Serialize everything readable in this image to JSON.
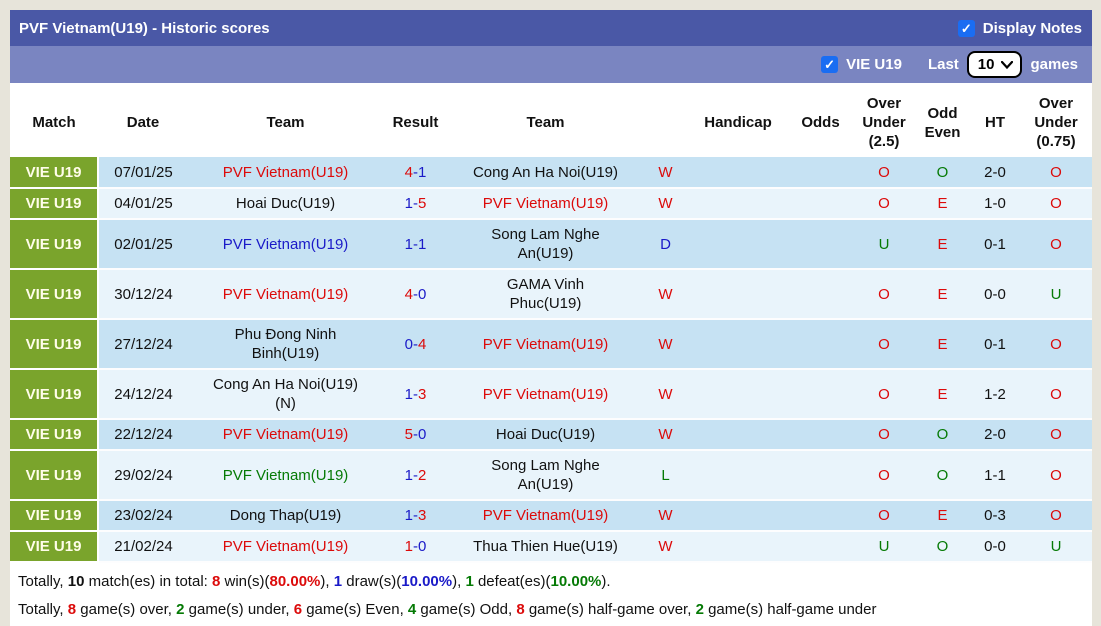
{
  "palette": {
    "red": "#dc0a0a",
    "blue": "#1a1ac8",
    "green": "#057a05",
    "black": "#111111",
    "accent_green": "#7aa42c",
    "bar_dark": "#4a58a6",
    "bar_light": "#7a85c1",
    "row_odd": "#c6e2f3",
    "row_even": "#e9f4fb",
    "checkbox_blue": "#1a6df2"
  },
  "title_bar": {
    "title": "PVF Vietnam(U19) - Historic scores",
    "display_notes_label": "Display Notes",
    "display_notes_checked": true,
    "check_glyph": "✓"
  },
  "filter_bar": {
    "team_label": "VIE U19",
    "team_checked": true,
    "last_label": "Last",
    "games_selected": "10",
    "games_label": "games",
    "check_glyph": "✓"
  },
  "table": {
    "headers": {
      "match": "Match",
      "date": "Date",
      "home": "Team",
      "result": "Result",
      "away": "Team",
      "wdl": "",
      "handicap": "Handicap",
      "odds": "Odds",
      "ou25": "Over\nUnder\n(2.5)",
      "oddeven": "Odd\nEven",
      "ht": "HT",
      "ou075": "Over\nUnder\n(0.75)"
    },
    "rows": [
      {
        "match": "VIE U19",
        "date": "07/01/25",
        "lines": 1,
        "home": {
          "text": "PVF Vietnam(U19)",
          "color": "red"
        },
        "score": {
          "home": "4",
          "away": "1",
          "home_color": "red",
          "away_color": "blue",
          "dash_color": "blue"
        },
        "away": {
          "text": "Cong An Ha Noi(U19)",
          "color": "black"
        },
        "wdl": {
          "text": "W",
          "color": "red"
        },
        "handicap": "",
        "odds": "",
        "ou25": {
          "text": "O",
          "color": "red"
        },
        "oddeven": {
          "text": "O",
          "color": "green"
        },
        "ht": "2-0",
        "ou075": {
          "text": "O",
          "color": "red"
        }
      },
      {
        "match": "VIE U19",
        "date": "04/01/25",
        "lines": 1,
        "home": {
          "text": "Hoai Duc(U19)",
          "color": "black"
        },
        "score": {
          "home": "1",
          "away": "5",
          "home_color": "blue",
          "away_color": "red",
          "dash_color": "blue"
        },
        "away": {
          "text": "PVF Vietnam(U19)",
          "color": "red"
        },
        "wdl": {
          "text": "W",
          "color": "red"
        },
        "handicap": "",
        "odds": "",
        "ou25": {
          "text": "O",
          "color": "red"
        },
        "oddeven": {
          "text": "E",
          "color": "red"
        },
        "ht": "1-0",
        "ou075": {
          "text": "O",
          "color": "red"
        }
      },
      {
        "match": "VIE U19",
        "date": "02/01/25",
        "lines": 2,
        "home": {
          "text": "PVF Vietnam(U19)",
          "color": "blue"
        },
        "score": {
          "home": "1",
          "away": "1",
          "home_color": "blue",
          "away_color": "blue",
          "dash_color": "blue"
        },
        "away": {
          "text": "Song Lam Nghe An(U19)",
          "color": "black"
        },
        "wdl": {
          "text": "D",
          "color": "blue"
        },
        "handicap": "",
        "odds": "",
        "ou25": {
          "text": "U",
          "color": "green"
        },
        "oddeven": {
          "text": "E",
          "color": "red"
        },
        "ht": "0-1",
        "ou075": {
          "text": "O",
          "color": "red"
        }
      },
      {
        "match": "VIE U19",
        "date": "30/12/24",
        "lines": 1,
        "home": {
          "text": "PVF Vietnam(U19)",
          "color": "red"
        },
        "score": {
          "home": "4",
          "away": "0",
          "home_color": "red",
          "away_color": "blue",
          "dash_color": "blue"
        },
        "away": {
          "text": "GAMA Vinh Phuc(U19)",
          "color": "black"
        },
        "wdl": {
          "text": "W",
          "color": "red"
        },
        "handicap": "",
        "odds": "",
        "ou25": {
          "text": "O",
          "color": "red"
        },
        "oddeven": {
          "text": "E",
          "color": "red"
        },
        "ht": "0-0",
        "ou075": {
          "text": "U",
          "color": "green"
        }
      },
      {
        "match": "VIE U19",
        "date": "27/12/24",
        "lines": 2,
        "home": {
          "text": "Phu Đong Ninh Binh(U19)",
          "color": "black"
        },
        "score": {
          "home": "0",
          "away": "4",
          "home_color": "blue",
          "away_color": "red",
          "dash_color": "blue"
        },
        "away": {
          "text": "PVF Vietnam(U19)",
          "color": "red"
        },
        "wdl": {
          "text": "W",
          "color": "red"
        },
        "handicap": "",
        "odds": "",
        "ou25": {
          "text": "O",
          "color": "red"
        },
        "oddeven": {
          "text": "E",
          "color": "red"
        },
        "ht": "0-1",
        "ou075": {
          "text": "O",
          "color": "red"
        }
      },
      {
        "match": "VIE U19",
        "date": "24/12/24",
        "lines": 2,
        "home": {
          "text": "Cong An Ha Noi(U19) (N)",
          "color": "black"
        },
        "score": {
          "home": "1",
          "away": "3",
          "home_color": "blue",
          "away_color": "red",
          "dash_color": "blue"
        },
        "away": {
          "text": "PVF Vietnam(U19)",
          "color": "red"
        },
        "wdl": {
          "text": "W",
          "color": "red"
        },
        "handicap": "",
        "odds": "",
        "ou25": {
          "text": "O",
          "color": "red"
        },
        "oddeven": {
          "text": "E",
          "color": "red"
        },
        "ht": "1-2",
        "ou075": {
          "text": "O",
          "color": "red"
        }
      },
      {
        "match": "VIE U19",
        "date": "22/12/24",
        "lines": 1,
        "home": {
          "text": "PVF Vietnam(U19)",
          "color": "red"
        },
        "score": {
          "home": "5",
          "away": "0",
          "home_color": "red",
          "away_color": "blue",
          "dash_color": "blue"
        },
        "away": {
          "text": "Hoai Duc(U19)",
          "color": "black"
        },
        "wdl": {
          "text": "W",
          "color": "red"
        },
        "handicap": "",
        "odds": "",
        "ou25": {
          "text": "O",
          "color": "red"
        },
        "oddeven": {
          "text": "O",
          "color": "green"
        },
        "ht": "2-0",
        "ou075": {
          "text": "O",
          "color": "red"
        }
      },
      {
        "match": "VIE U19",
        "date": "29/02/24",
        "lines": 2,
        "home": {
          "text": "PVF Vietnam(U19)",
          "color": "green"
        },
        "score": {
          "home": "1",
          "away": "2",
          "home_color": "blue",
          "away_color": "red",
          "dash_color": "blue"
        },
        "away": {
          "text": "Song Lam Nghe An(U19)",
          "color": "black"
        },
        "wdl": {
          "text": "L",
          "color": "green"
        },
        "handicap": "",
        "odds": "",
        "ou25": {
          "text": "O",
          "color": "red"
        },
        "oddeven": {
          "text": "O",
          "color": "green"
        },
        "ht": "1-1",
        "ou075": {
          "text": "O",
          "color": "red"
        }
      },
      {
        "match": "VIE U19",
        "date": "23/02/24",
        "lines": 1,
        "home": {
          "text": "Dong Thap(U19)",
          "color": "black"
        },
        "score": {
          "home": "1",
          "away": "3",
          "home_color": "blue",
          "away_color": "red",
          "dash_color": "blue"
        },
        "away": {
          "text": "PVF Vietnam(U19)",
          "color": "red"
        },
        "wdl": {
          "text": "W",
          "color": "red"
        },
        "handicap": "",
        "odds": "",
        "ou25": {
          "text": "O",
          "color": "red"
        },
        "oddeven": {
          "text": "E",
          "color": "red"
        },
        "ht": "0-3",
        "ou075": {
          "text": "O",
          "color": "red"
        }
      },
      {
        "match": "VIE U19",
        "date": "21/02/24",
        "lines": 1,
        "home": {
          "text": "PVF Vietnam(U19)",
          "color": "red"
        },
        "score": {
          "home": "1",
          "away": "0",
          "home_color": "red",
          "away_color": "blue",
          "dash_color": "blue"
        },
        "away": {
          "text": "Thua Thien Hue(U19)",
          "color": "black"
        },
        "wdl": {
          "text": "W",
          "color": "red"
        },
        "handicap": "",
        "odds": "",
        "ou25": {
          "text": "U",
          "color": "green"
        },
        "oddeven": {
          "text": "O",
          "color": "green"
        },
        "ht": "0-0",
        "ou075": {
          "text": "U",
          "color": "green"
        }
      }
    ]
  },
  "footer": {
    "line1": [
      {
        "text": "Totally, ",
        "color": "black",
        "bold": false
      },
      {
        "text": "10",
        "color": "black",
        "bold": true
      },
      {
        "text": " match(es) in total: ",
        "color": "black",
        "bold": false
      },
      {
        "text": "8",
        "color": "red",
        "bold": true
      },
      {
        "text": " win(s)(",
        "color": "black",
        "bold": false
      },
      {
        "text": "80.00%",
        "color": "red",
        "bold": true
      },
      {
        "text": "), ",
        "color": "black",
        "bold": false
      },
      {
        "text": "1",
        "color": "blue",
        "bold": true
      },
      {
        "text": " draw(s)(",
        "color": "black",
        "bold": false
      },
      {
        "text": "10.00%",
        "color": "blue",
        "bold": true
      },
      {
        "text": "), ",
        "color": "black",
        "bold": false
      },
      {
        "text": "1",
        "color": "green",
        "bold": true
      },
      {
        "text": " defeat(es)(",
        "color": "black",
        "bold": false
      },
      {
        "text": "10.00%",
        "color": "green",
        "bold": true
      },
      {
        "text": ").",
        "color": "black",
        "bold": false
      }
    ],
    "line2": [
      {
        "text": "Totally, ",
        "color": "black",
        "bold": false
      },
      {
        "text": "8",
        "color": "red",
        "bold": true
      },
      {
        "text": " game(s) over, ",
        "color": "black",
        "bold": false
      },
      {
        "text": "2",
        "color": "green",
        "bold": true
      },
      {
        "text": " game(s) under, ",
        "color": "black",
        "bold": false
      },
      {
        "text": "6",
        "color": "red",
        "bold": true
      },
      {
        "text": " game(s) Even, ",
        "color": "black",
        "bold": false
      },
      {
        "text": "4",
        "color": "green",
        "bold": true
      },
      {
        "text": " game(s) Odd, ",
        "color": "black",
        "bold": false
      },
      {
        "text": "8",
        "color": "red",
        "bold": true
      },
      {
        "text": " game(s) half-game over, ",
        "color": "black",
        "bold": false
      },
      {
        "text": "2",
        "color": "green",
        "bold": true
      },
      {
        "text": " game(s) half-game under",
        "color": "black",
        "bold": false
      }
    ]
  }
}
